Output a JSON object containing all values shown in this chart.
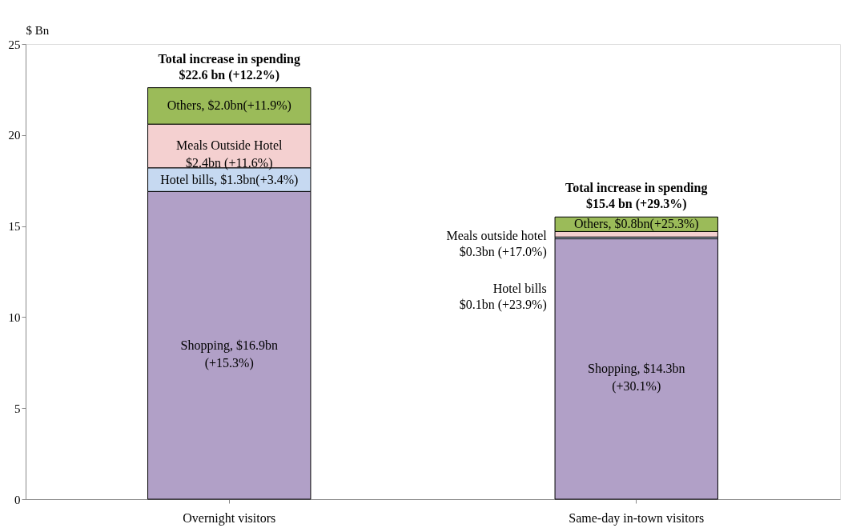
{
  "chart_data": {
    "type": "bar",
    "stacked": true,
    "ylabel": "$ Bn",
    "categories": [
      "Overnight visitors",
      "Same-day in-town visitors"
    ],
    "series": [
      {
        "color": "#b1a0c7",
        "values": [
          16.9,
          14.3
        ]
      },
      {
        "color": "#c6d9f1",
        "values": [
          1.3,
          0.1
        ]
      },
      {
        "color": "#f4d0d0",
        "values": [
          2.4,
          0.3
        ]
      },
      {
        "color": "#9bbb59",
        "values": [
          2.0,
          0.8
        ]
      }
    ],
    "annotations": [
      "Shopping, $16.9bn\n(+15.3%)",
      "Hotel bills, $1.3bn(+3.4%)",
      "Meals Outside Hotel\n$2.4bn (+11.6%)",
      "Others, $2.0bn(+11.9%)",
      "Shopping, $14.3bn\n(+30.1%)",
      "Hotel bills\n$0.1bn (+23.9%)",
      "Meals outside hotel\n$0.3bn (+17.0%)",
      "Others, $0.8bn(+25.3%)"
    ],
    "totals": [
      "Total increase in spending\n$22.6 bn (+12.2%)",
      "Total increase in spending\n$15.4 bn (+29.3%)"
    ],
    "ylim": [
      0,
      25
    ],
    "yticks": [
      0,
      5,
      10,
      15,
      20,
      25
    ],
    "grid": false,
    "legend": false
  }
}
